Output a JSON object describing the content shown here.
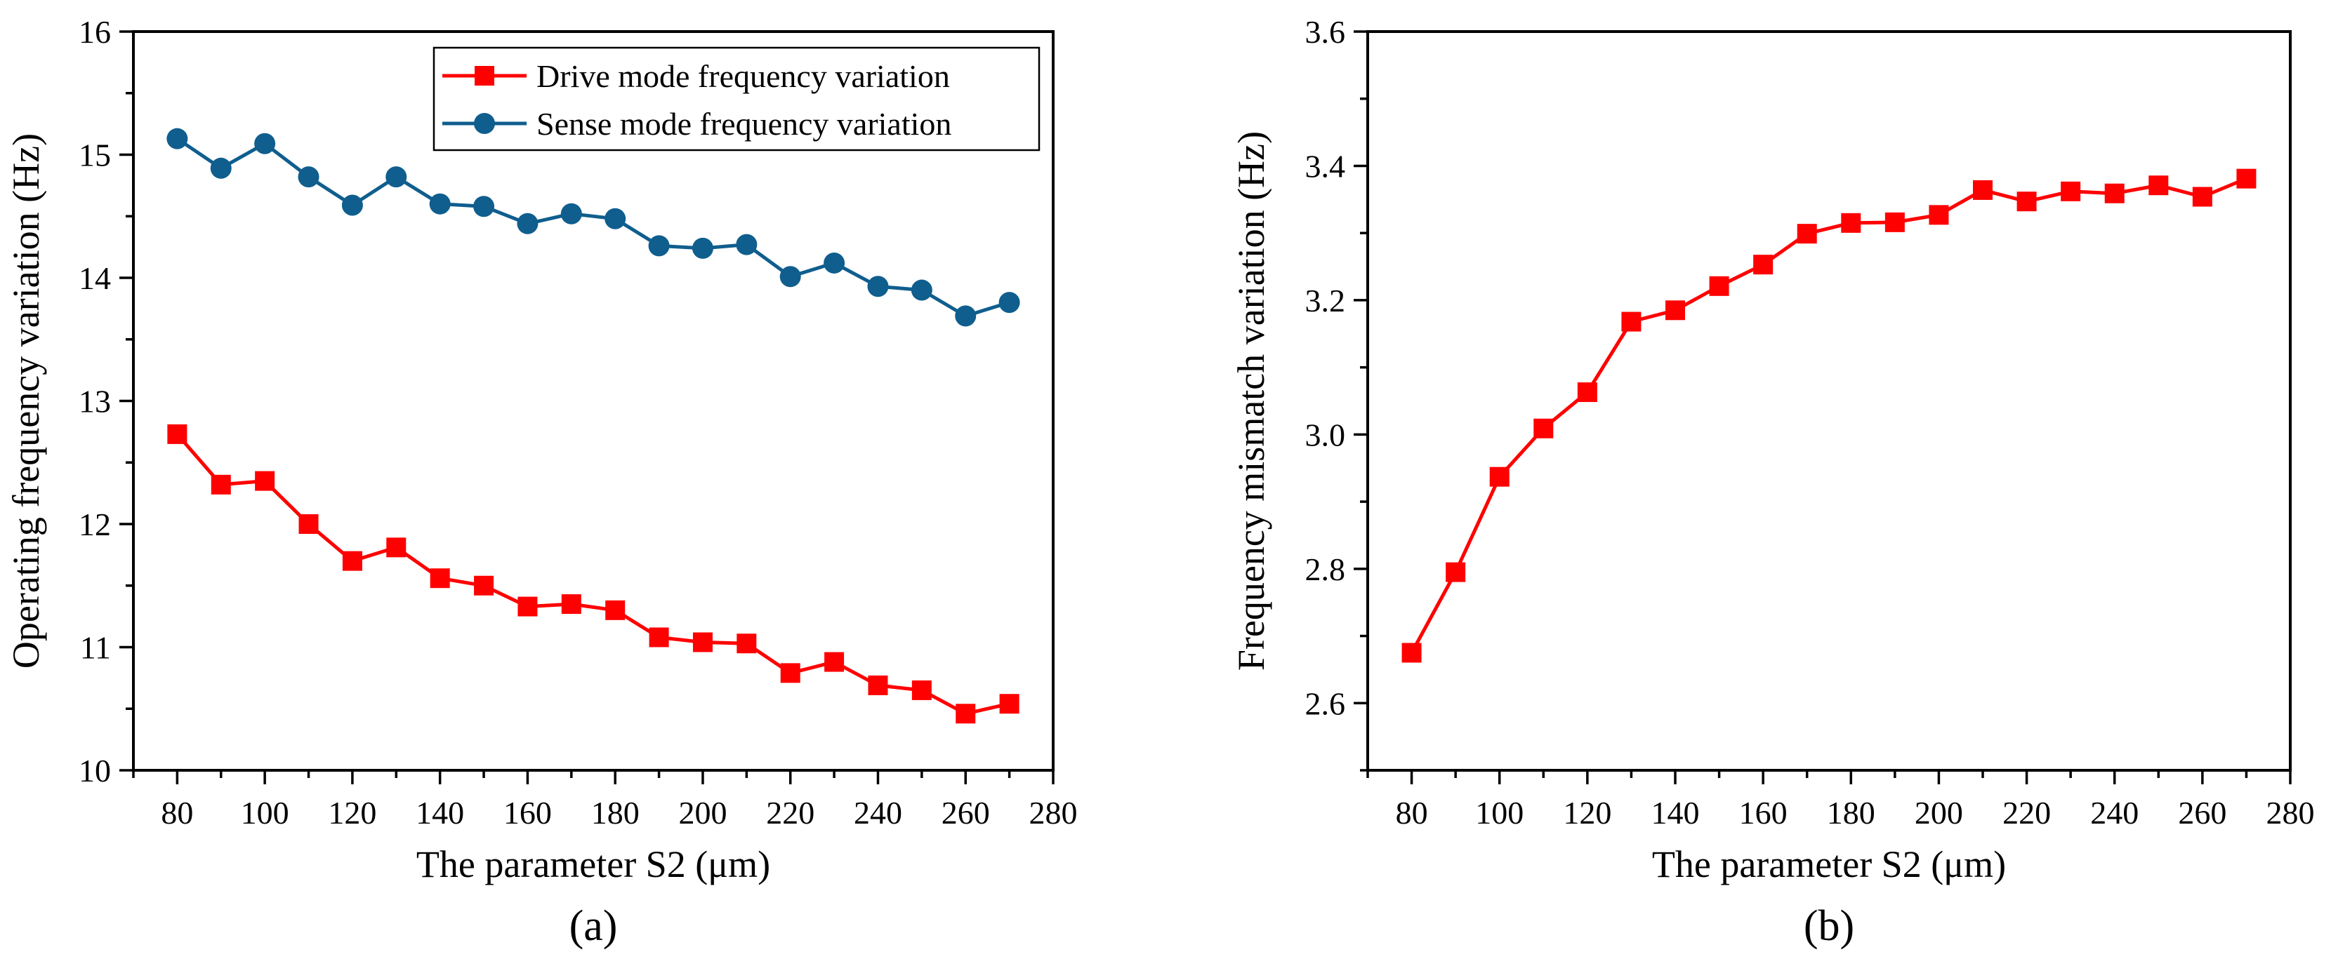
{
  "chart_data": [
    {
      "type": "line",
      "panel_label": "(a)",
      "title": "",
      "xlabel": "The parameter S2 (μm)",
      "ylabel": "Operating frequency variation (Hz)",
      "xlim": [
        70,
        280
      ],
      "ylim": [
        10,
        16
      ],
      "xticks": [
        80,
        100,
        120,
        140,
        160,
        180,
        200,
        220,
        240,
        260,
        280
      ],
      "yticks": [
        10,
        11,
        12,
        13,
        14,
        15,
        16
      ],
      "legend": "top-right",
      "grid": false,
      "x": [
        80,
        90,
        100,
        110,
        120,
        130,
        140,
        150,
        160,
        170,
        180,
        190,
        200,
        210,
        220,
        230,
        240,
        250,
        260,
        270
      ],
      "series": [
        {
          "name": "Drive mode frequency variation",
          "color": "#ff0000",
          "marker": "square",
          "values": [
            12.73,
            12.32,
            12.35,
            12.0,
            11.7,
            11.81,
            11.56,
            11.5,
            11.33,
            11.35,
            11.3,
            11.08,
            11.04,
            11.03,
            10.79,
            10.88,
            10.69,
            10.65,
            10.46,
            10.54
          ]
        },
        {
          "name": "Sense mode frequency variation",
          "color": "#0f5e8e",
          "marker": "circle",
          "values": [
            15.13,
            14.89,
            15.09,
            14.82,
            14.59,
            14.82,
            14.6,
            14.58,
            14.44,
            14.52,
            14.48,
            14.26,
            14.24,
            14.27,
            14.01,
            14.12,
            13.93,
            13.9,
            13.69,
            13.8
          ]
        }
      ]
    },
    {
      "type": "line",
      "panel_label": "(b)",
      "title": "",
      "xlabel": "The parameter S2 (μm)",
      "ylabel": "Frequency mismatch variation (Hz)",
      "xlim": [
        70,
        280
      ],
      "ylim": [
        2.5,
        3.6
      ],
      "xticks": [
        80,
        100,
        120,
        140,
        160,
        180,
        200,
        220,
        240,
        260,
        280
      ],
      "yticks": [
        2.6,
        2.8,
        3.0,
        3.2,
        3.4,
        3.6
      ],
      "ytick_labels": [
        "2.6",
        "2.8",
        "3.0",
        "3.2",
        "3.4",
        "3.6"
      ],
      "legend": "none",
      "grid": false,
      "x": [
        80,
        90,
        100,
        110,
        120,
        130,
        140,
        150,
        160,
        170,
        180,
        190,
        200,
        210,
        220,
        230,
        240,
        250,
        260,
        270
      ],
      "series": [
        {
          "color": "#ff0000",
          "marker": "square",
          "values": [
            2.675,
            2.795,
            2.937,
            3.009,
            3.063,
            3.168,
            3.185,
            3.221,
            3.253,
            3.299,
            3.315,
            3.316,
            3.327,
            3.364,
            3.347,
            3.362,
            3.359,
            3.371,
            3.354,
            3.381
          ]
        }
      ]
    }
  ]
}
